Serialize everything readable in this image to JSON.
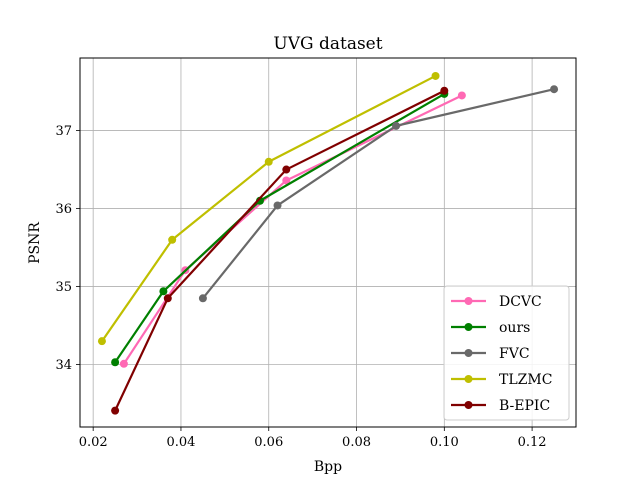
{
  "chart_data": {
    "type": "line",
    "title": "UVG dataset",
    "xlabel": "Bpp",
    "ylabel": "PSNR",
    "xlim": [
      0.017,
      0.13
    ],
    "ylim": [
      33.2,
      37.93
    ],
    "xticks": [
      0.02,
      0.04,
      0.06,
      0.08,
      0.1,
      0.12
    ],
    "xtick_labels": [
      "0.02",
      "0.04",
      "0.06",
      "0.08",
      "0.10",
      "0.12"
    ],
    "yticks": [
      34,
      35,
      36,
      37
    ],
    "ytick_labels": [
      "34",
      "35",
      "36",
      "37"
    ],
    "grid": true,
    "legend_position": "lower-right",
    "series": [
      {
        "name": "DCVC",
        "color": "#ff69b4",
        "x": [
          0.027,
          0.041,
          0.064,
          0.104
        ],
        "y": [
          34.01,
          35.21,
          36.36,
          37.45
        ]
      },
      {
        "name": "ours",
        "color": "#008000",
        "x": [
          0.025,
          0.036,
          0.058,
          0.1
        ],
        "y": [
          34.03,
          34.94,
          36.1,
          37.47
        ]
      },
      {
        "name": "FVC",
        "color": "#696969",
        "x": [
          0.045,
          0.062,
          0.089,
          0.125
        ],
        "y": [
          34.85,
          36.04,
          37.06,
          37.53
        ]
      },
      {
        "name": "TLZMC",
        "color": "#bfbf00",
        "x": [
          0.022,
          0.038,
          0.06,
          0.098
        ],
        "y": [
          34.3,
          35.6,
          36.6,
          37.7
        ]
      },
      {
        "name": "B-EPIC",
        "color": "#800000",
        "x": [
          0.025,
          0.037,
          0.064,
          0.1
        ],
        "y": [
          33.41,
          34.85,
          36.5,
          37.51
        ]
      }
    ]
  }
}
